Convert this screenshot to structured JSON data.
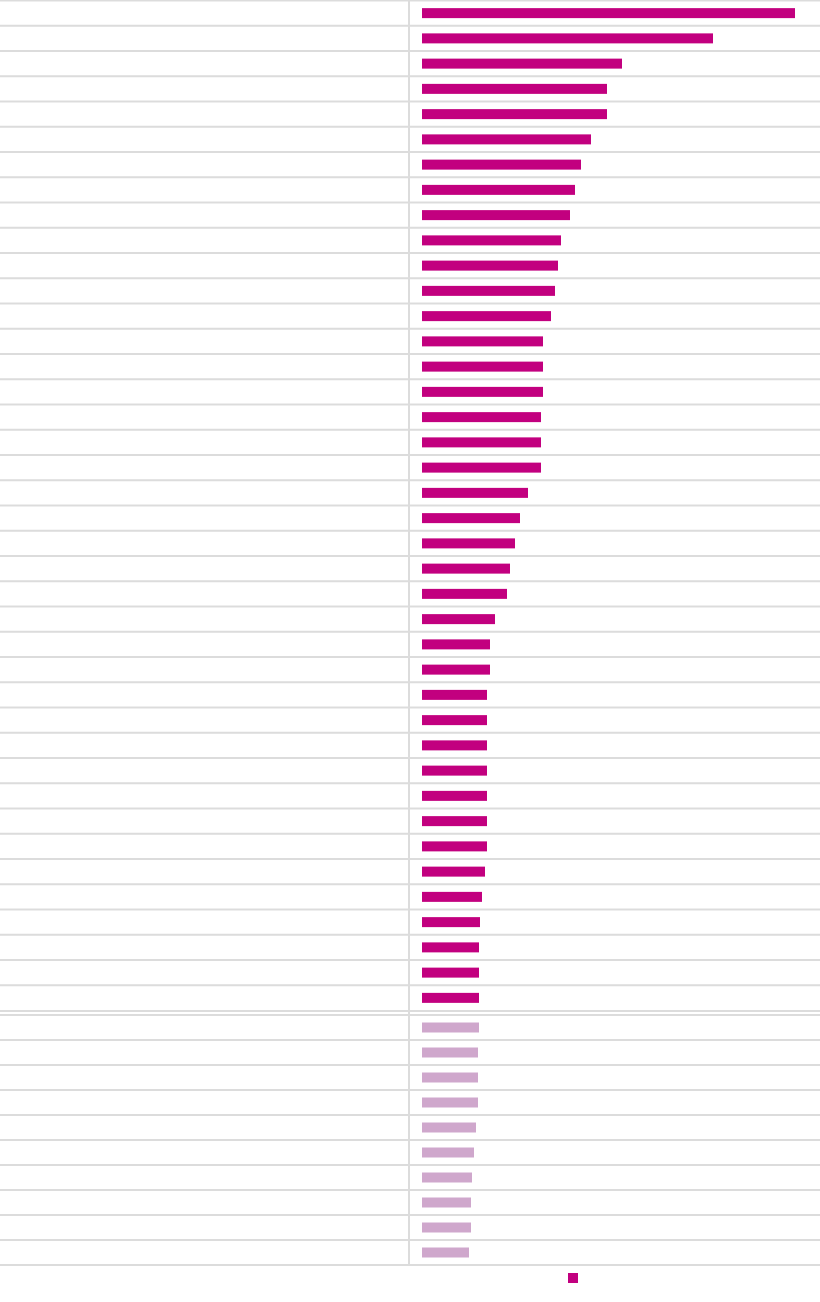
{
  "chart_data": {
    "type": "bar",
    "orientation": "horizontal",
    "categories": [
      null,
      null,
      null,
      null,
      null,
      null,
      null,
      null,
      null,
      null,
      null,
      null,
      null,
      null,
      null,
      null,
      null,
      null,
      null,
      null,
      null,
      null,
      null,
      null,
      null,
      null,
      null,
      null,
      null,
      null,
      null,
      null,
      null,
      null,
      null,
      null,
      null,
      null,
      null,
      null,
      null,
      null,
      null,
      null,
      null,
      null,
      null,
      null,
      null,
      null
    ],
    "xlim": [
      0,
      398
    ],
    "series": [
      {
        "color": "#c2007f",
        "values": [
          373,
          291,
          200,
          185,
          185,
          169,
          159,
          153,
          148,
          139,
          136,
          133,
          129,
          121,
          121,
          121,
          119,
          119,
          119,
          106,
          98,
          93,
          88,
          85,
          73,
          68,
          68,
          65,
          65,
          65,
          65,
          65,
          65,
          65,
          63,
          60,
          58,
          57,
          57,
          57,
          null,
          null,
          null,
          null,
          null,
          null,
          null,
          null,
          null,
          null
        ]
      },
      {
        "color": "#cfa7cc",
        "values": [
          null,
          null,
          null,
          null,
          null,
          null,
          null,
          null,
          null,
          null,
          null,
          null,
          null,
          null,
          null,
          null,
          null,
          null,
          null,
          null,
          null,
          null,
          null,
          null,
          null,
          null,
          null,
          null,
          null,
          null,
          null,
          null,
          null,
          null,
          null,
          null,
          null,
          null,
          null,
          null,
          57,
          56,
          56,
          56,
          54,
          52,
          50,
          49,
          49,
          47
        ]
      }
    ],
    "legend": true
  }
}
